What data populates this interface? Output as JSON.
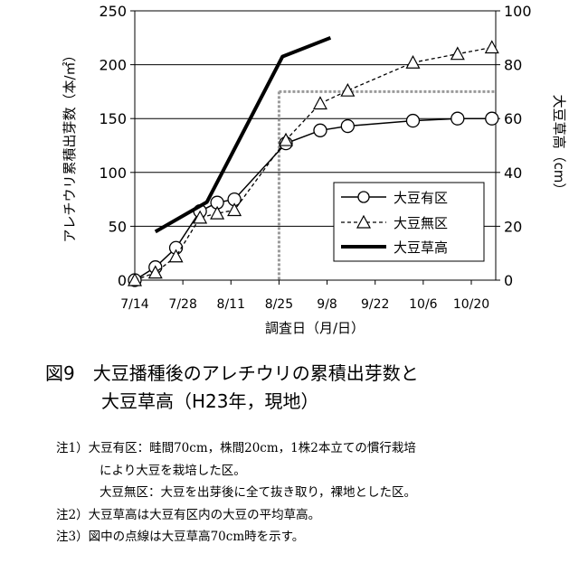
{
  "chart_data": {
    "type": "line",
    "xlabel": "調査日（月/日）",
    "ylabel_left": "アレチウリ累積出芽数（本/㎡）",
    "ylabel_right": "大豆草高（cm）",
    "x_ticks": [
      "7/14",
      "7/28",
      "8/11",
      "8/25",
      "9/8",
      "9/22",
      "10/6",
      "10/20"
    ],
    "ylim_left": [
      0,
      250
    ],
    "yticks_left": [
      "0",
      "50",
      "100",
      "150",
      "200",
      "250"
    ],
    "ylim_right": [
      0,
      100
    ],
    "yticks_right": [
      "0",
      "20",
      "40",
      "60",
      "80",
      "100"
    ],
    "grid": "horizontal",
    "legend_position": "right-middle",
    "series": [
      {
        "name": "大豆有区",
        "axis": "left",
        "marker": "circle",
        "line": "solid",
        "points": [
          [
            "7/14",
            0
          ],
          [
            "7/20",
            12
          ],
          [
            "7/26",
            30
          ],
          [
            "8/2",
            64
          ],
          [
            "8/7",
            72
          ],
          [
            "8/12",
            75
          ],
          [
            "8/27",
            127
          ],
          [
            "9/6",
            139
          ],
          [
            "9/14",
            143
          ],
          [
            "10/3",
            148
          ],
          [
            "10/16",
            150
          ],
          [
            "10/26",
            150
          ]
        ]
      },
      {
        "name": "大豆無区",
        "axis": "left",
        "marker": "triangle",
        "line": "dashed",
        "points": [
          [
            "7/14",
            0
          ],
          [
            "7/20",
            7
          ],
          [
            "7/26",
            22
          ],
          [
            "8/2",
            58
          ],
          [
            "8/7",
            62
          ],
          [
            "8/12",
            65
          ],
          [
            "8/27",
            130
          ],
          [
            "9/6",
            164
          ],
          [
            "9/14",
            176
          ],
          [
            "10/3",
            202
          ],
          [
            "10/16",
            210
          ],
          [
            "10/26",
            216
          ]
        ]
      },
      {
        "name": "大豆草高",
        "axis": "right",
        "marker": "none",
        "line": "thick",
        "points": [
          [
            "7/20",
            18
          ],
          [
            "8/4",
            29
          ],
          [
            "8/26",
            83
          ],
          [
            "9/9",
            90
          ]
        ]
      }
    ],
    "reference": {
      "axis": "right",
      "y": 70,
      "x": "8/25",
      "style": "dotted"
    }
  },
  "caption": {
    "line1": "図9　大豆播種後のアレチウリの累積出芽数と",
    "line2": "大豆草高（H23年，現地）"
  },
  "notes": [
    "注1）大豆有区：畦間70cm，株間20cm，1株2本立ての慣行栽培",
    "により大豆を栽培した区。",
    "大豆無区：大豆を出芽後に全て抜き取り，裸地とした区。",
    "注2）大豆草高は大豆有区内の大豆の平均草高。",
    "注3）図中の点線は大豆草高70cm時を示す。"
  ]
}
